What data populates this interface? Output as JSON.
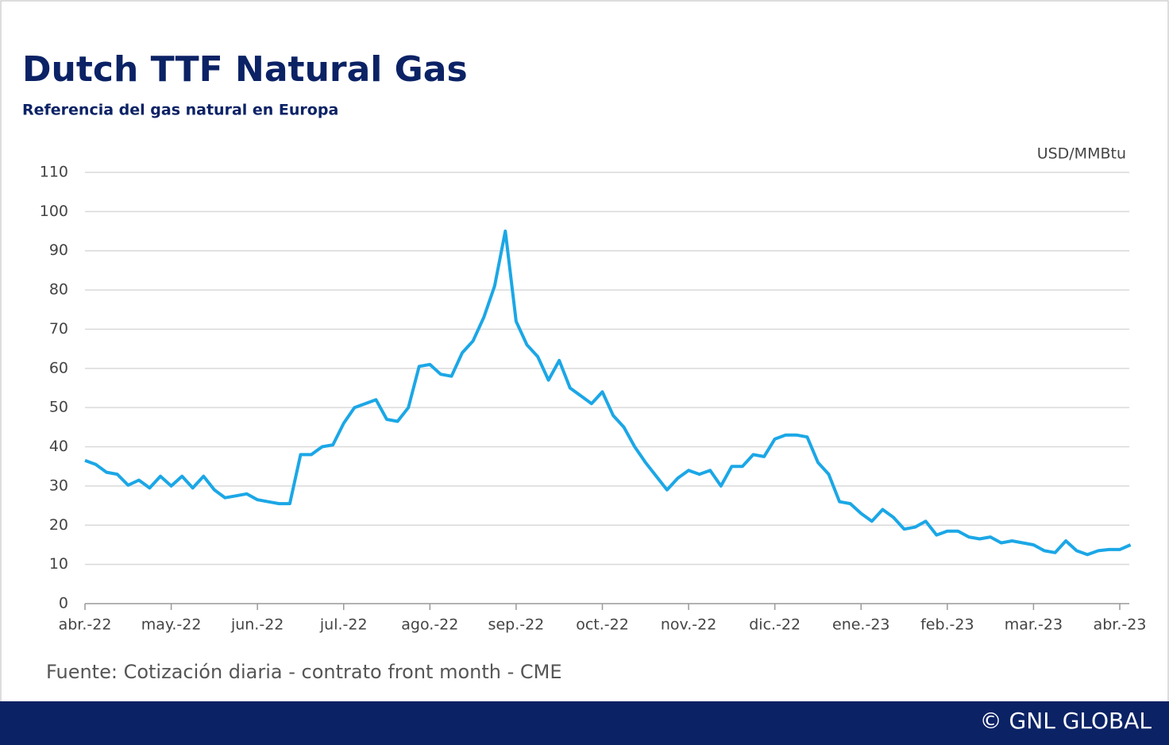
{
  "chart_data": {
    "type": "line",
    "title": "Dutch TTF Natural Gas",
    "subtitle": "Referencia del gas natural en Europa",
    "y_label": "USD/MMBtu",
    "categories": [
      "abr.-22",
      null,
      null,
      null,
      null,
      null,
      null,
      null,
      "may.-22",
      null,
      null,
      null,
      null,
      null,
      null,
      null,
      "jun.-22",
      null,
      null,
      null,
      null,
      null,
      null,
      null,
      "jul.-22",
      null,
      null,
      null,
      null,
      null,
      null,
      null,
      "ago.-22",
      null,
      null,
      null,
      null,
      null,
      null,
      null,
      "sep.-22",
      null,
      null,
      null,
      null,
      null,
      null,
      null,
      "oct.-22",
      null,
      null,
      null,
      null,
      null,
      null,
      null,
      "nov.-22",
      null,
      null,
      null,
      null,
      null,
      null,
      null,
      "dic.-22",
      null,
      null,
      null,
      null,
      null,
      null,
      null,
      "ene.-23",
      null,
      null,
      null,
      null,
      null,
      null,
      null,
      "feb.-23",
      null,
      null,
      null,
      null,
      null,
      null,
      null,
      "mar.-23",
      null,
      null,
      null,
      null,
      null,
      null,
      null,
      "abr.-23",
      null
    ],
    "series": [
      {
        "name": "Dutch TTF",
        "color": "#1ba7e6",
        "values": [
          36.5,
          35.5,
          33.5,
          33,
          30.2,
          31.5,
          29.5,
          32.5,
          30,
          32.5,
          29.5,
          32.5,
          29,
          27,
          27.5,
          28,
          26.5,
          26,
          25.5,
          25.5,
          38,
          38,
          40,
          40.5,
          46,
          50,
          51,
          52,
          47,
          46.5,
          50,
          60.5,
          61,
          58.5,
          58,
          64,
          67,
          73,
          81,
          95,
          72,
          66,
          63,
          57,
          62,
          55,
          53,
          51,
          54,
          48,
          45,
          40,
          36,
          32.5,
          29,
          32,
          34,
          33,
          34,
          30,
          35,
          35,
          38,
          37.5,
          42,
          43,
          43,
          42.5,
          36,
          33,
          26,
          25.5,
          23,
          21,
          24,
          22,
          19,
          19.5,
          21,
          17.5,
          18.5,
          18.5,
          17,
          16.5,
          17,
          15.5,
          16,
          15.5,
          15,
          13.5,
          13,
          16,
          13.5,
          12.5,
          13.5,
          13.8,
          13.8,
          15
        ]
      }
    ],
    "ylim": [
      0,
      110
    ],
    "yticks": [
      0,
      10,
      20,
      30,
      40,
      50,
      60,
      70,
      80,
      90,
      100,
      110
    ],
    "grid": true
  },
  "footer": {
    "source": "Fuente: Cotización diaria - contrato front month - CME",
    "copyright": "© GNL GLOBAL"
  }
}
